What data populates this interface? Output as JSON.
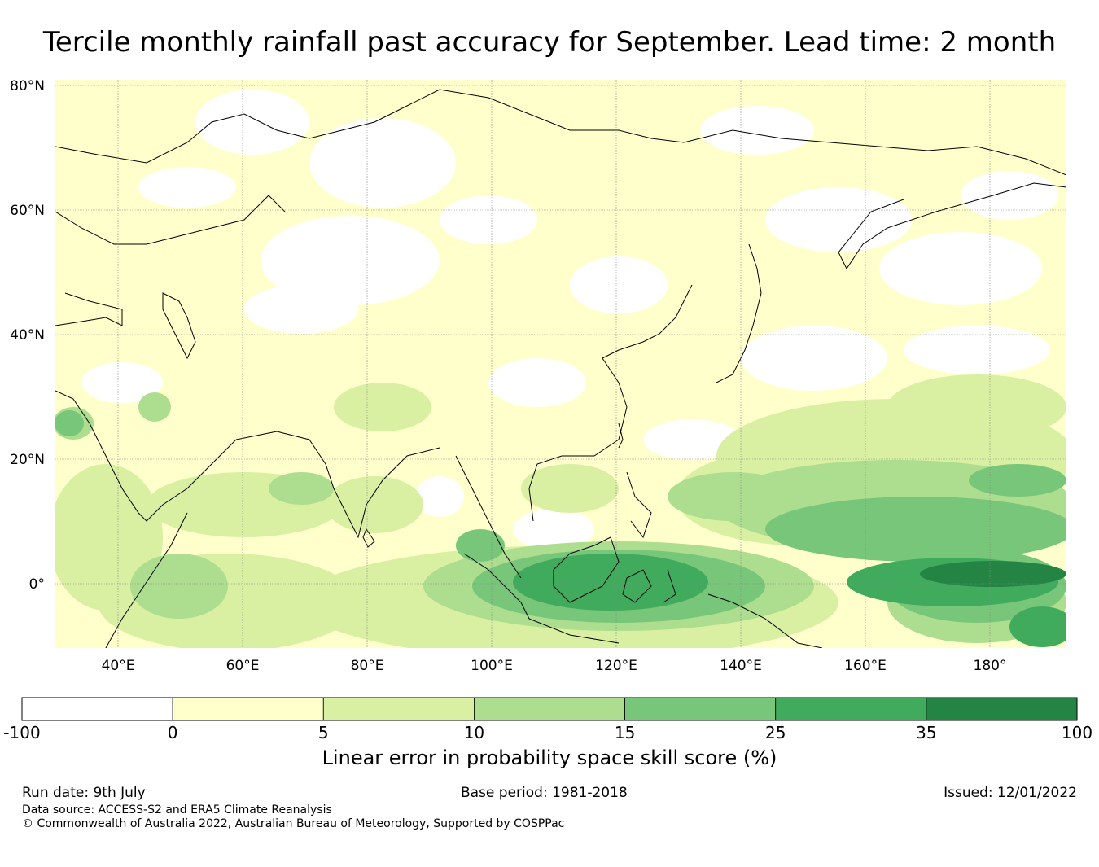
{
  "title": "Tercile monthly rainfall past accuracy for September. Lead time: 2 month",
  "map": {
    "lat_ticks": [
      "80°N",
      "60°N",
      "40°N",
      "20°N",
      "0°"
    ],
    "lon_ticks": [
      "40°E",
      "60°E",
      "80°E",
      "100°E",
      "120°E",
      "140°E",
      "160°E",
      "180°"
    ],
    "lon_range": [
      30,
      192
    ],
    "lat_range": [
      -10,
      80
    ]
  },
  "legend": {
    "label": "Linear error in probability space skill score (%)",
    "ticks": [
      "-100",
      "0",
      "5",
      "10",
      "15",
      "25",
      "35",
      "100"
    ],
    "bins": [
      {
        "from": -100,
        "to": 0,
        "color": "#ffffff"
      },
      {
        "from": 0,
        "to": 5,
        "color": "#ffffcc"
      },
      {
        "from": 5,
        "to": 10,
        "color": "#d9f0a3"
      },
      {
        "from": 10,
        "to": 15,
        "color": "#addd8e"
      },
      {
        "from": 15,
        "to": 25,
        "color": "#78c679"
      },
      {
        "from": 25,
        "to": 35,
        "color": "#41ab5d"
      },
      {
        "from": 35,
        "to": 100,
        "color": "#238443"
      }
    ]
  },
  "footer": {
    "run_date": "Run date: 9th July",
    "base_period": "Base period: 1981-2018",
    "issued": "Issued: 12/01/2022",
    "data_source": "Data source: ACCESS-S2 and ERA5 Climate Reanalysis",
    "copyright": "© Commonwealth of Australia 2022, Australian Bureau of Meteorology, Supported by COSPPac"
  }
}
